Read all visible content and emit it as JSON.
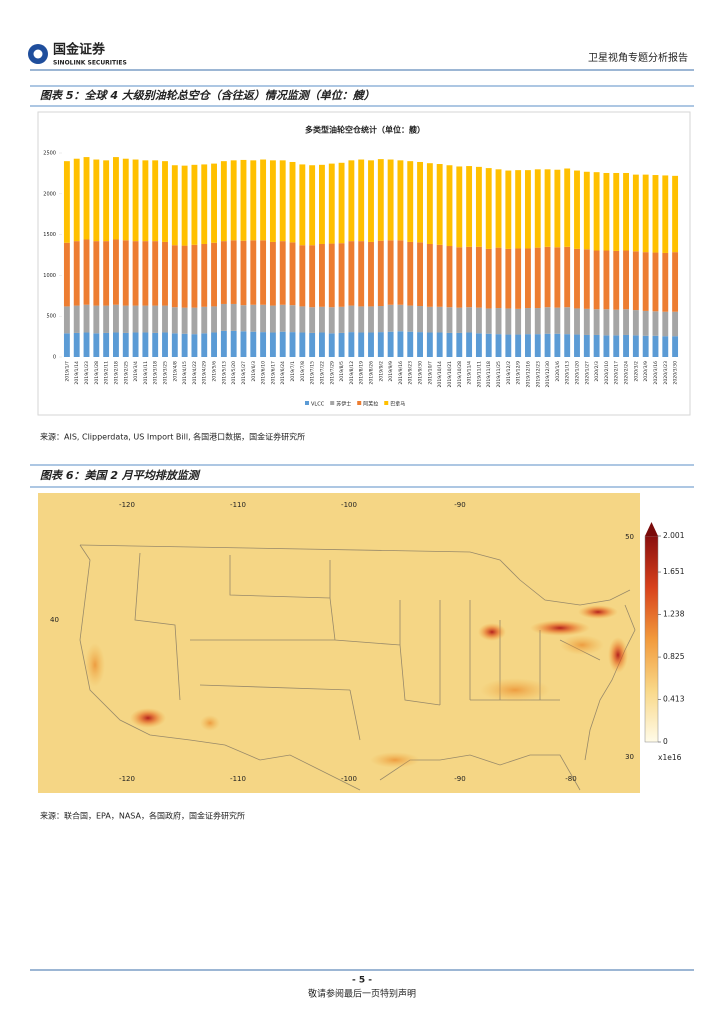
{
  "header": {
    "logo_cn": "国金证券",
    "logo_en": "SINOLINK SECURITIES",
    "report_title": "卫星视角专题分析报告"
  },
  "figure5": {
    "caption": "图表 5：全球 4 大级别油轮总空仓（含往返）情况监测（单位：艘）",
    "source": "来源：AIS, Clipperdata, US Import Bill, 各国港口数据，国金证券研究所"
  },
  "chart_data": {
    "type": "stacked-bar",
    "title": "多类型油轮空仓统计（单位：艘）",
    "categories": [
      "2019/1/7",
      "2019/1/14",
      "2019/1/23",
      "2019/1/28",
      "2019/2/11",
      "2019/2/18",
      "2019/2/25",
      "2019/3/4",
      "2019/3/11",
      "2019/3/18",
      "2019/3/25",
      "2019/4/8",
      "2019/4/15",
      "2019/4/22",
      "2019/4/29",
      "2019/5/6",
      "2019/5/13",
      "2019/5/20",
      "2019/5/27",
      "2019/6/3",
      "2019/6/10",
      "2019/6/17",
      "2019/6/24",
      "2019/7/1",
      "2019/7/8",
      "2019/7/15",
      "2019/7/22",
      "2019/7/29",
      "2019/8/5",
      "2019/8/12",
      "2019/8/19",
      "2019/8/26",
      "2019/9/2",
      "2019/9/9",
      "2019/9/16",
      "2019/9/23",
      "2019/9/30",
      "2019/10/7",
      "2019/10/14",
      "2019/10/21",
      "2019/10/28",
      "2019/11/4",
      "2019/11/11",
      "2019/11/18",
      "2019/11/25",
      "2019/12/2",
      "2019/12/9",
      "2019/12/16",
      "2019/12/23",
      "2019/12/30",
      "2020/1/6",
      "2020/1/13",
      "2020/1/20",
      "2020/1/27",
      "2020/2/3",
      "2020/2/10",
      "2020/2/17",
      "2020/2/24",
      "2020/3/2",
      "2020/3/9",
      "2020/3/16",
      "2020/3/23",
      "2020/3/30"
    ],
    "series": [
      {
        "name": "VLCC",
        "color": "#5b9bd5",
        "values": [
          290,
          295,
          300,
          290,
          295,
          300,
          295,
          300,
          300,
          295,
          300,
          290,
          285,
          280,
          290,
          300,
          320,
          320,
          315,
          310,
          305,
          300,
          310,
          305,
          300,
          295,
          300,
          290,
          295,
          305,
          300,
          300,
          305,
          310,
          315,
          310,
          305,
          300,
          300,
          295,
          295,
          300,
          290,
          285,
          280,
          275,
          275,
          280,
          280,
          285,
          285,
          280,
          275,
          270,
          270,
          265,
          265,
          270,
          265,
          260,
          260,
          255,
          255
        ]
      },
      {
        "name": "苏伊士",
        "color": "#a5a5a5",
        "values": [
          330,
          335,
          340,
          340,
          335,
          340,
          335,
          330,
          330,
          335,
          330,
          320,
          320,
          325,
          325,
          320,
          330,
          330,
          320,
          330,
          335,
          330,
          330,
          330,
          320,
          315,
          315,
          320,
          320,
          325,
          320,
          320,
          320,
          330,
          325,
          320,
          320,
          315,
          315,
          315,
          310,
          310,
          315,
          310,
          320,
          320,
          315,
          320,
          320,
          325,
          320,
          330,
          320,
          320,
          315,
          320,
          315,
          315,
          310,
          305,
          300,
          300,
          300
        ]
      },
      {
        "name": "阿芙拉",
        "color": "#ed7d31",
        "values": [
          780,
          790,
          800,
          790,
          790,
          800,
          800,
          790,
          790,
          790,
          780,
          760,
          760,
          770,
          770,
          780,
          770,
          780,
          790,
          790,
          790,
          780,
          780,
          770,
          750,
          760,
          770,
          780,
          780,
          790,
          800,
          790,
          800,
          790,
          790,
          780,
          780,
          770,
          760,
          750,
          740,
          740,
          745,
          730,
          740,
          730,
          740,
          730,
          740,
          740,
          740,
          740,
          730,
          730,
          720,
          720,
          720,
          720,
          720,
          720,
          720,
          720,
          730
        ]
      },
      {
        "name": "巴拿马",
        "color": "#ffc000",
        "values": [
          1000,
          1010,
          1010,
          1000,
          990,
          1010,
          1000,
          1000,
          990,
          990,
          990,
          980,
          980,
          980,
          975,
          970,
          980,
          980,
          990,
          980,
          990,
          1000,
          990,
          985,
          990,
          980,
          970,
          980,
          985,
          990,
          1000,
          1000,
          1000,
          990,
          980,
          990,
          985,
          990,
          990,
          990,
          990,
          990,
          980,
          990,
          960,
          960,
          960,
          960,
          960,
          950,
          950,
          960,
          960,
          950,
          960,
          950,
          955,
          950,
          940,
          950,
          950,
          950,
          935
        ]
      }
    ],
    "ylim": [
      0,
      2500
    ],
    "yticks": [
      0,
      500,
      1000,
      1500,
      2000,
      2500
    ],
    "grid": false,
    "legend": "bottom"
  },
  "figure6": {
    "caption": "图表 6：美国 2 月平均排放监测",
    "source": "来源：联合国，EPA，NASA，各国政府，国金证券研究所",
    "lon_top": [
      -120,
      -110,
      -100,
      -90
    ],
    "lon_bottom": [
      -120,
      -110,
      -100,
      -90,
      -80
    ],
    "lat_left": [
      40
    ],
    "lat_right": [
      50,
      30
    ],
    "colorbar": {
      "lim": [
        0,
        2.001
      ],
      "ticks": [
        0,
        0.413,
        0.825,
        1.238,
        1.651,
        2.001
      ],
      "unit": "x1e16"
    }
  },
  "footer": {
    "page": "- 5 -",
    "disclaimer": "敬请参阅最后一页特别声明"
  }
}
